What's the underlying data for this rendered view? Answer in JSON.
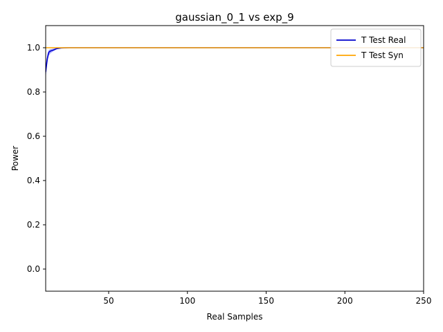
{
  "chart_data": {
    "type": "line",
    "title": "gaussian_0_1 vs exp_9",
    "xlabel": "Real Samples",
    "ylabel": "Power",
    "xlim": [
      10,
      250
    ],
    "ylim": [
      -0.1,
      1.1
    ],
    "xticks": [
      50,
      100,
      150,
      200,
      250
    ],
    "yticks": [
      0.0,
      0.2,
      0.4,
      0.6,
      0.8,
      1.0
    ],
    "grid": false,
    "legend_position": "top-right",
    "series": [
      {
        "name": "T Test Real",
        "color": "#0000cc",
        "band_color": "#0000ff",
        "x": [
          10,
          11,
          12,
          13,
          15,
          17,
          20,
          25,
          30,
          50,
          100,
          150,
          200,
          250
        ],
        "y": [
          0.89,
          0.95,
          0.98,
          0.985,
          0.99,
          0.996,
          0.999,
          1.0,
          1.0,
          1.0,
          1.0,
          1.0,
          1.0,
          1.0
        ],
        "lower": [
          0.86,
          0.93,
          0.965,
          0.975,
          0.985,
          0.993,
          0.998,
          1.0,
          1.0,
          1.0,
          1.0,
          1.0,
          1.0,
          1.0
        ],
        "upper": [
          0.92,
          0.97,
          0.99,
          0.993,
          0.996,
          0.999,
          1.0,
          1.0,
          1.0,
          1.0,
          1.0,
          1.0,
          1.0,
          1.0
        ]
      },
      {
        "name": "T Test Syn",
        "color": "#ffa500",
        "x": [
          10,
          50,
          100,
          150,
          200,
          250
        ],
        "y": [
          1.0,
          1.0,
          1.0,
          1.0,
          1.0,
          1.0
        ]
      }
    ]
  }
}
